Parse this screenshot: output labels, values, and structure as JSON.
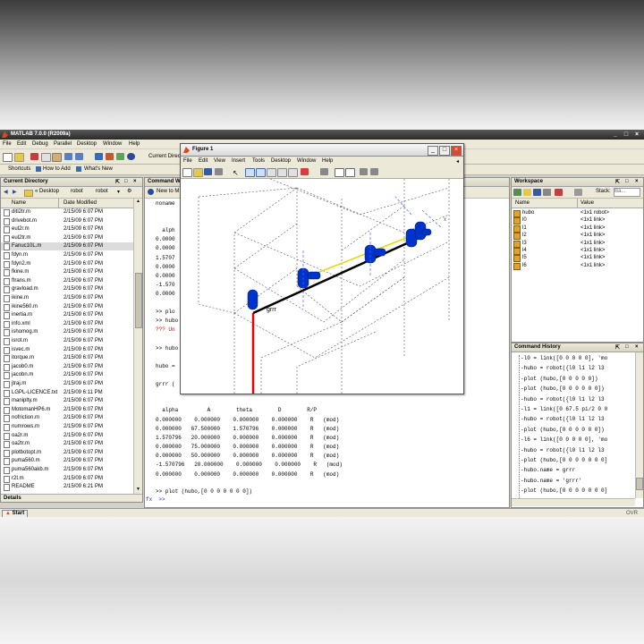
{
  "window": {
    "title": "MATLAB 7.0.0 (R2009a)"
  },
  "menu": [
    "File",
    "Edit",
    "Debug",
    "Parallel",
    "Desktop",
    "Window",
    "Help"
  ],
  "toolbar": {
    "current_dir_label": "Current Direc"
  },
  "shortcuts": {
    "shortcuts": "Shortcuts",
    "how_to_add": "How to Add",
    "whats_new": "What's New"
  },
  "current_directory": {
    "title": "Current Directory",
    "path": [
      "« Desktop",
      "robot",
      "robot"
    ],
    "col_name": "Name",
    "col_date": "Date Modified",
    "files": [
      {
        "name": "ditl2tr.m",
        "date": "2/15/09 6:07 PM"
      },
      {
        "name": "drivebot.m",
        "date": "2/15/09 6:07 PM"
      },
      {
        "name": "eul2r.m",
        "date": "2/15/09 6:07 PM"
      },
      {
        "name": "eul2tr.m",
        "date": "2/15/09 6:07 PM"
      },
      {
        "name": "Fanuc10L.m",
        "date": "2/15/09 6:07 PM"
      },
      {
        "name": "fdyn.m",
        "date": "2/15/09 6:07 PM"
      },
      {
        "name": "fdyn2.m",
        "date": "2/15/09 6:07 PM"
      },
      {
        "name": "fkine.m",
        "date": "2/15/09 6:07 PM"
      },
      {
        "name": "ftrans.m",
        "date": "2/15/09 6:07 PM"
      },
      {
        "name": "gravload.m",
        "date": "2/15/09 6:07 PM"
      },
      {
        "name": "ikine.m",
        "date": "2/15/09 6:07 PM"
      },
      {
        "name": "ikine560.m",
        "date": "2/15/09 6:07 PM"
      },
      {
        "name": "inertia.m",
        "date": "2/15/09 6:07 PM"
      },
      {
        "name": "info.xml",
        "date": "2/15/09 6:07 PM"
      },
      {
        "name": "ishomog.m",
        "date": "2/15/09 6:07 PM"
      },
      {
        "name": "isrot.m",
        "date": "2/15/09 6:07 PM"
      },
      {
        "name": "isvec.m",
        "date": "2/15/09 6:07 PM"
      },
      {
        "name": "itorque.m",
        "date": "2/15/09 6:07 PM"
      },
      {
        "name": "jacob0.m",
        "date": "2/15/09 6:07 PM"
      },
      {
        "name": "jacobn.m",
        "date": "2/15/09 6:07 PM"
      },
      {
        "name": "jtraj.m",
        "date": "2/15/09 6:07 PM"
      },
      {
        "name": "LGPL-LICENCE.txt",
        "date": "2/15/09 6:11 PM"
      },
      {
        "name": "maniplty.m",
        "date": "2/15/09 6:07 PM"
      },
      {
        "name": "MotomanHP6.m",
        "date": "2/15/09 6:07 PM"
      },
      {
        "name": "nofriction.m",
        "date": "2/15/09 6:07 PM"
      },
      {
        "name": "numrows.m",
        "date": "2/15/09 6:07 PM"
      },
      {
        "name": "oa2r.m",
        "date": "2/15/09 6:07 PM"
      },
      {
        "name": "oa2tr.m",
        "date": "2/15/09 6:07 PM"
      },
      {
        "name": "plotbotopt.m",
        "date": "2/15/09 6:07 PM"
      },
      {
        "name": "puma560.m",
        "date": "2/15/09 6:07 PM"
      },
      {
        "name": "puma560akb.m",
        "date": "2/15/09 6:07 PM"
      },
      {
        "name": "r2t.m",
        "date": "2/15/09 6:07 PM"
      },
      {
        "name": "README",
        "date": "2/15/09 6:21 PM"
      }
    ],
    "details": "Details"
  },
  "command_window": {
    "title": "Command W",
    "help_label": "New to M",
    "lines_top": [
      "noname",
      "",
      "",
      "  alph",
      "0.0000",
      "0.0000",
      "1.5707",
      "0.0000",
      "0.0000",
      "-1.570",
      "0.0000",
      "",
      ">> plo",
      ">> hubo",
      "??? Un",
      "",
      ">> hubo",
      "",
      "hubo =",
      "",
      "grrr ("
    ],
    "table_header": "  alpha         A        theta        D        R/P",
    "table_rows": [
      "0.000000    0.000000    0.000000    0.000000    R   (mod)",
      "0.000000   67.500000    1.570796    0.000000    R   (mod)",
      "1.570796   20.000000    0.000000    0.000000    R   (mod)",
      "0.000000   75.000000    0.000000    0.000000    R   (mod)",
      "0.000000   50.000000    0.000000    0.000000    R   (mod)",
      "-1.570796   20.000000    0.000000    0.000000    R   (mod)",
      "0.000000    0.000000    0.000000    0.000000    R   (mod)"
    ],
    "last_command": ">> plot (hubo,[0 0 0 0 0 0 0])",
    "prompt": "fx  >>"
  },
  "figure": {
    "title": "Figure 1",
    "menu": [
      "File",
      "Edit",
      "View",
      "Insert",
      "Tools",
      "Desktop",
      "Window",
      "Help"
    ],
    "robot_name": "grrr",
    "axis_label": "x"
  },
  "workspace": {
    "title": "Workspace",
    "stack_label": "Stack:",
    "stack_value": "Ba...",
    "col_name": "Name",
    "col_value": "Value",
    "vars": [
      {
        "name": "hubo",
        "value": "<1x1 robot>"
      },
      {
        "name": "l0",
        "value": "<1x1 link>"
      },
      {
        "name": "l1",
        "value": "<1x1 link>"
      },
      {
        "name": "l2",
        "value": "<1x1 link>"
      },
      {
        "name": "l3",
        "value": "<1x1 link>"
      },
      {
        "name": "l4",
        "value": "<1x1 link>"
      },
      {
        "name": "l5",
        "value": "<1x1 link>"
      },
      {
        "name": "l6",
        "value": "<1x1 link>"
      }
    ]
  },
  "command_history": {
    "title": "Command History",
    "lines": [
      "-l0 = link([0 0 0 0 0], 'mo",
      "-hubo = robot({l0 l1 l2 l3",
      "-plot (hubo,[0 0 0 0 0])",
      "-plot (hubo,[0 0 0 0 0 0])",
      "-hubo = robot({l0 l1 l2 l3",
      "-l1 = link([0 67.5 pi/2 0 0",
      "-hubo = robot({l0 l1 l2 l3",
      "-plot (hubo,[0 0 0 0 0 0])",
      "-l6 = link([0 0 0 0 0], 'mo",
      "-hubo = robot({l0 l1 l2 l3",
      "-plot (hubo,[0 0 0 0 0 0 0]",
      "-hubo.name = grrr",
      "-hubo.name = 'grrr'",
      "-plot (hubo,[0 0 0 0 0 0 0]"
    ]
  },
  "status": {
    "start": "Start",
    "ovr": "OVR"
  }
}
